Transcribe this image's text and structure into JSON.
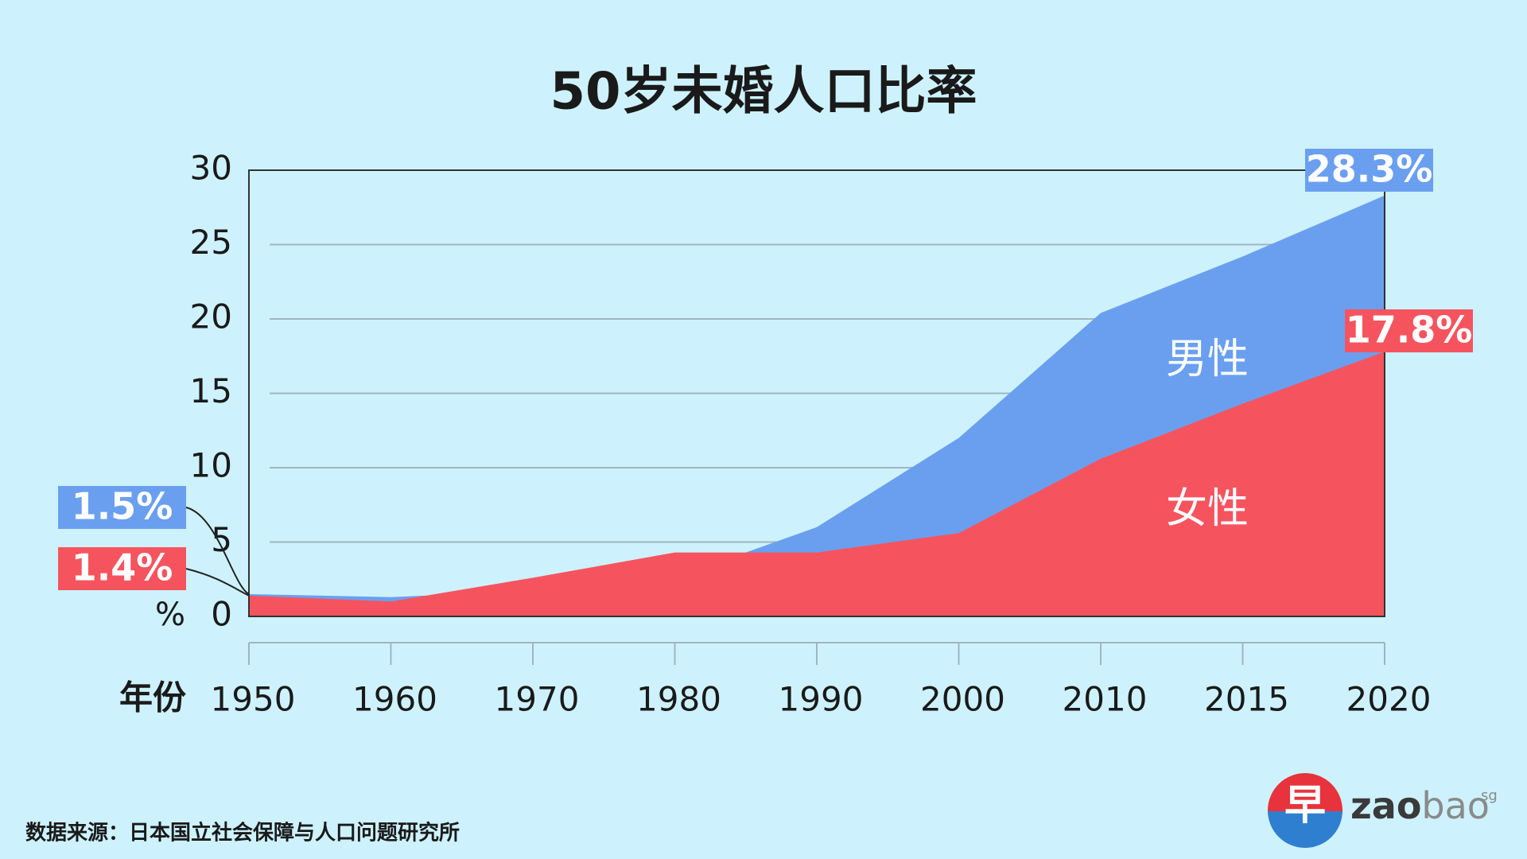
{
  "chart_data": {
    "type": "area",
    "title": "50岁未婚人口比率",
    "categories": [
      "1950",
      "1960",
      "1970",
      "1980",
      "1990",
      "2000",
      "2010",
      "2015",
      "2020"
    ],
    "series": [
      {
        "name": "男性",
        "color": "#6a9ff0",
        "values": [
          1.5,
          1.3,
          1.7,
          2.6,
          6.0,
          12.0,
          20.4,
          24.2,
          28.3
        ],
        "value_labels": [
          "1.5%",
          null,
          null,
          null,
          null,
          null,
          null,
          null,
          "28.3%"
        ]
      },
      {
        "name": "女性",
        "color": "#f5545f",
        "values": [
          1.4,
          1.0,
          2.6,
          4.3,
          4.3,
          5.6,
          10.6,
          14.3,
          17.8
        ],
        "value_labels": [
          "1.4%",
          null,
          null,
          null,
          null,
          null,
          null,
          null,
          "17.8%"
        ]
      }
    ],
    "ylim": [
      0,
      30
    ],
    "yticks": [
      0,
      5,
      10,
      15,
      20,
      25,
      30
    ],
    "grid": true,
    "y_label": "%",
    "x_label": "年份",
    "source": "数据来源：日本国立社会保障与人口问题研究所"
  },
  "logo": {
    "mark": "早",
    "name_bold": "zao",
    "name_light": "bao",
    "superscript": "sg"
  }
}
